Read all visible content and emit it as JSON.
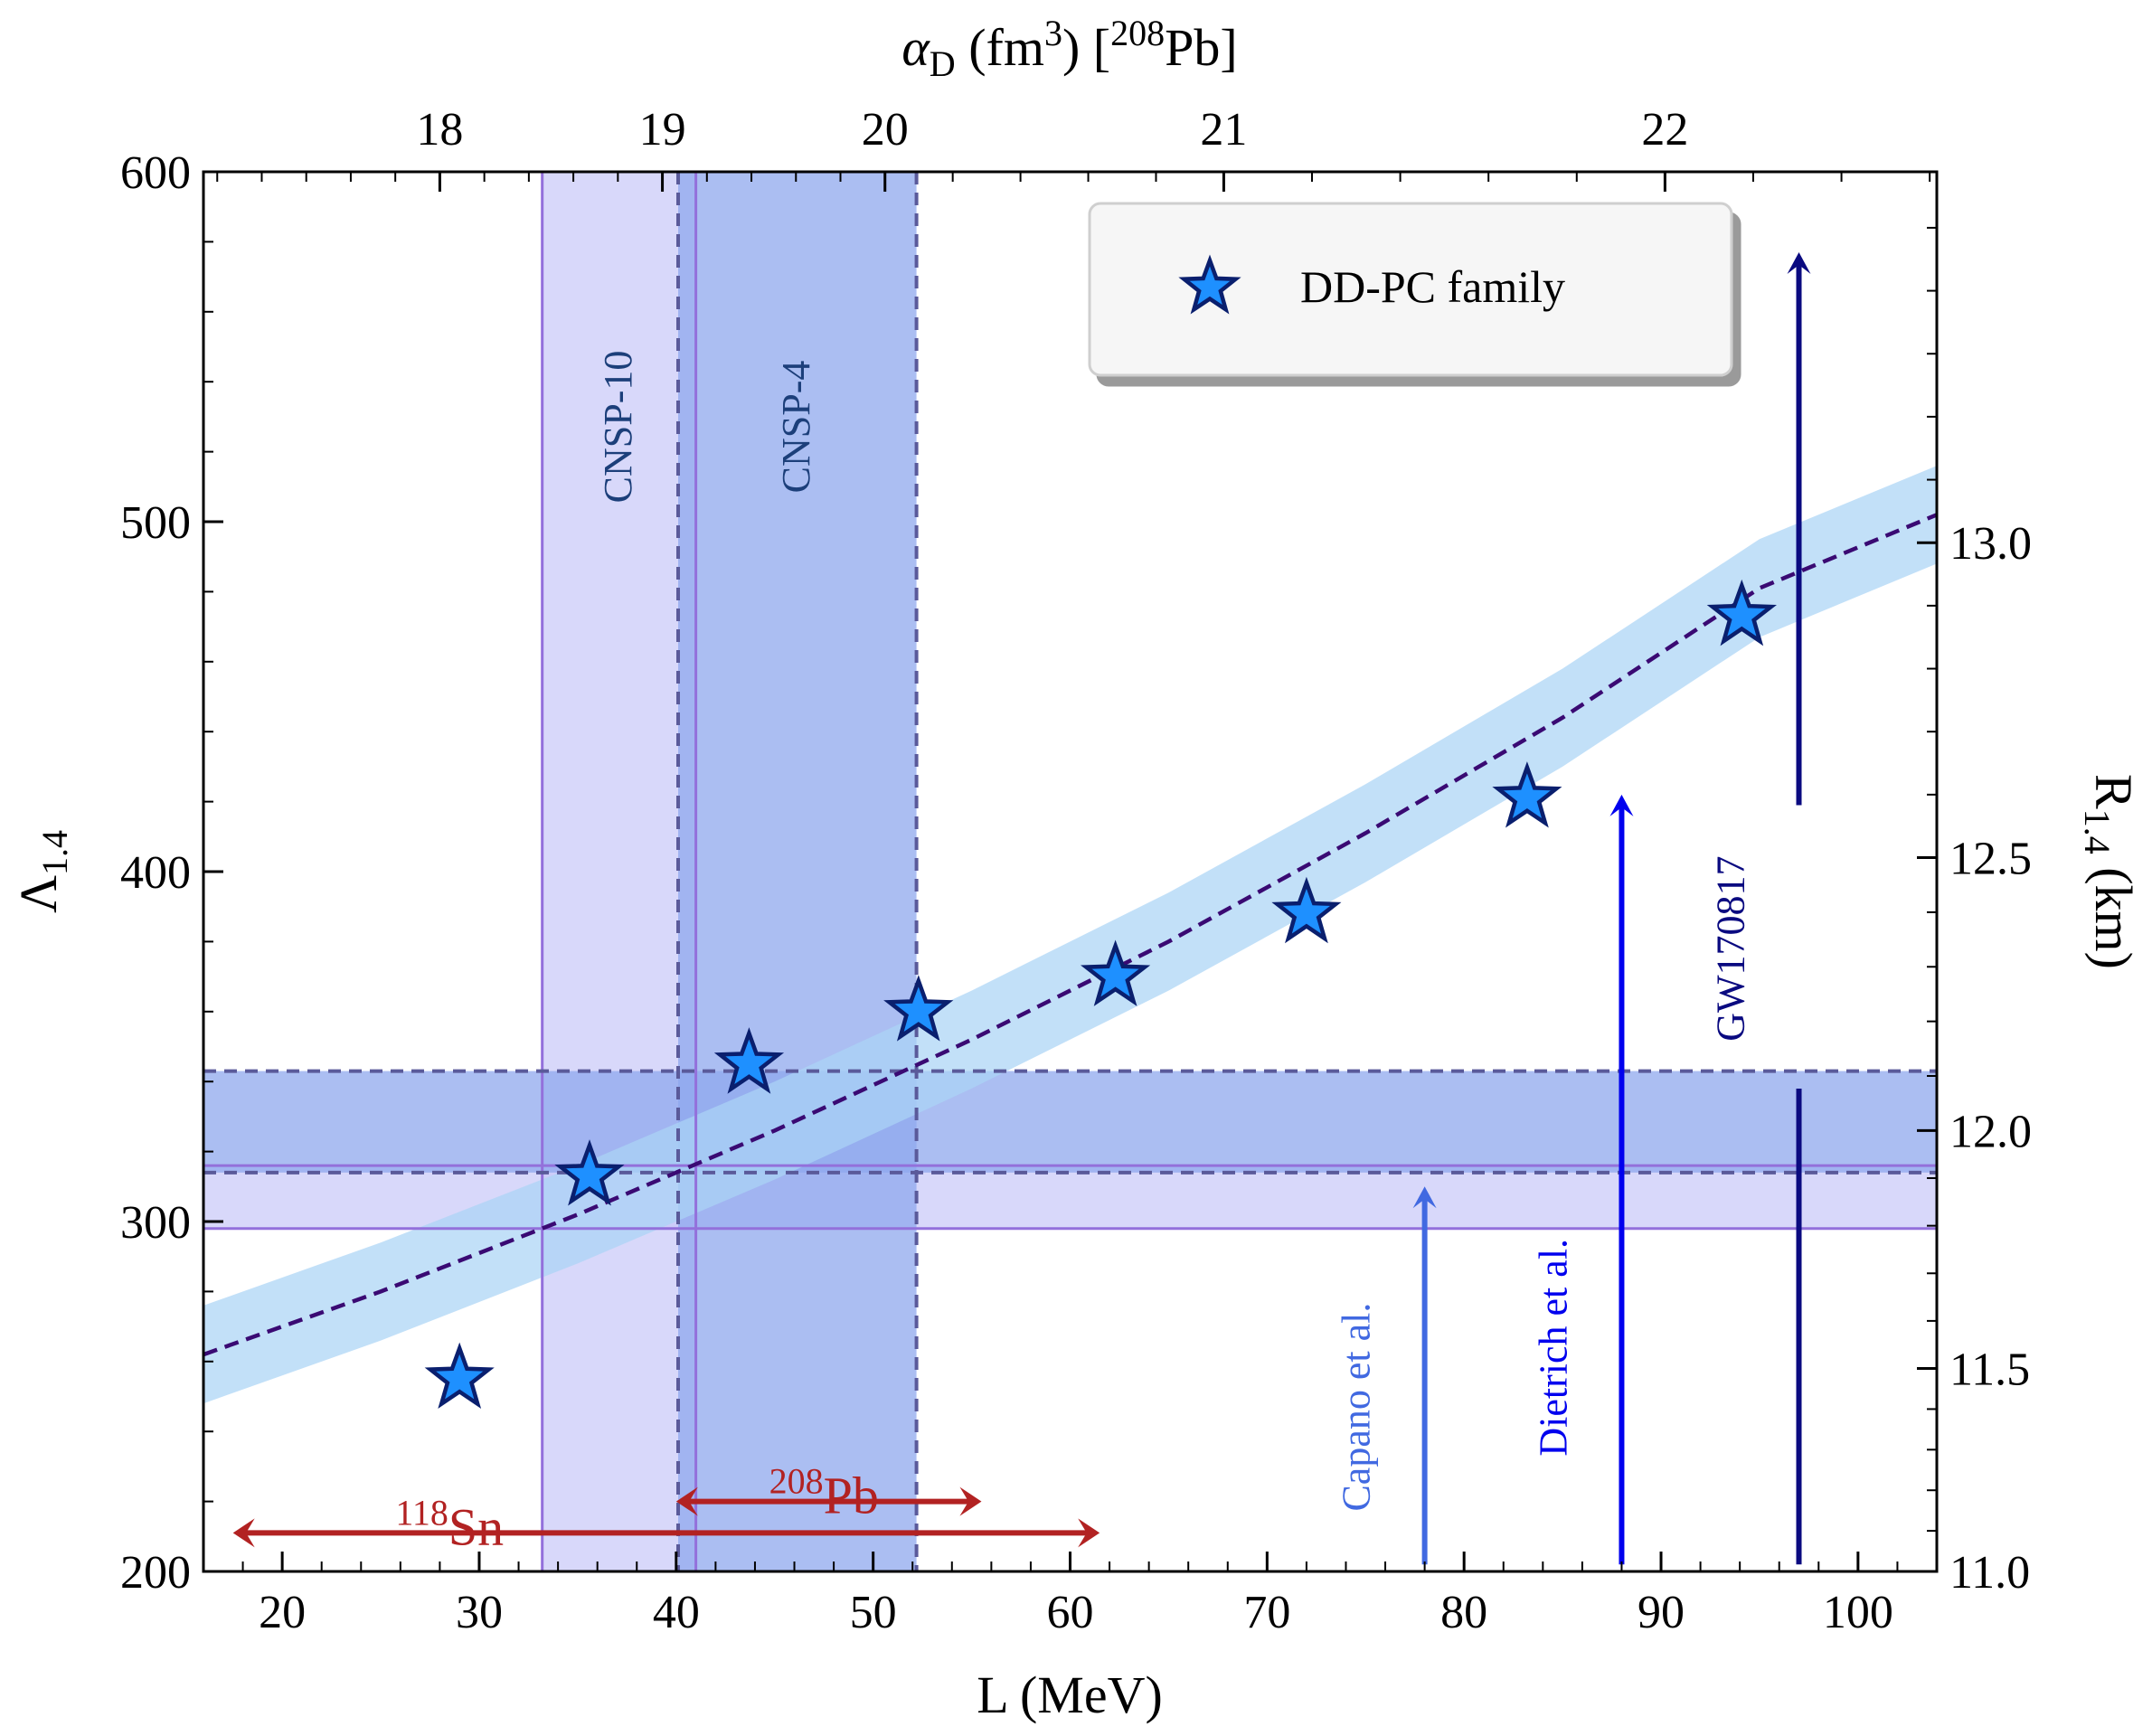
{
  "chart_data": {
    "type": "scatter",
    "xlabel": "L (MeV)",
    "ylabel": "Λ",
    "ylabel_sub": "1.4",
    "ylabel_right": "R",
    "ylabel_right_sub": "1.4",
    "ylabel_right_unit": " (km)",
    "xlabel_top_alpha": "α",
    "xlabel_top_sub": "D",
    "xlabel_top_mid": " (fm",
    "xlabel_top_sup": "3",
    "xlabel_top_mid2": ") [",
    "xlabel_top_pbsup": "208",
    "xlabel_top_end": "Pb]",
    "xlim": [
      16,
      104
    ],
    "ylim": [
      200,
      600
    ],
    "xticks": [
      20,
      30,
      40,
      50,
      60,
      70,
      80,
      90,
      100
    ],
    "yticks": [
      200,
      300,
      400,
      500,
      600
    ],
    "top_ticks": [
      {
        "label": "18",
        "L": 28.0
      },
      {
        "label": "19",
        "L": 39.3
      },
      {
        "label": "20",
        "L": 50.6
      },
      {
        "label": "21",
        "L": 67.8
      },
      {
        "label": "22",
        "L": 90.2
      }
    ],
    "right_ticks": [
      {
        "label": "11.0",
        "lambda": 200
      },
      {
        "label": "11.5",
        "lambda": 258
      },
      {
        "label": "12.0",
        "lambda": 326
      },
      {
        "label": "12.5",
        "lambda": 404
      },
      {
        "label": "13.0",
        "lambda": 494
      }
    ],
    "series": [
      {
        "name": "DD-PC family",
        "color": "#1e90ff",
        "edge_color": "#0a1f6e",
        "points": [
          {
            "x": 29.0,
            "y": 255
          },
          {
            "x": 35.6,
            "y": 313
          },
          {
            "x": 43.7,
            "y": 345
          },
          {
            "x": 52.3,
            "y": 360
          },
          {
            "x": 62.3,
            "y": 370
          },
          {
            "x": 72.0,
            "y": 388
          },
          {
            "x": 83.2,
            "y": 421
          },
          {
            "x": 94.1,
            "y": 473
          }
        ]
      }
    ],
    "fit": {
      "color": "#3a0a73",
      "band_color": "#aad4f5",
      "x": [
        16,
        25,
        35,
        45,
        55,
        65,
        75,
        85,
        95,
        104
      ],
      "y": [
        262,
        280,
        302,
        326,
        352,
        380,
        411,
        444,
        481,
        502
      ],
      "band_halfwidth": 14
    },
    "bands": [
      {
        "label": "CNSP-10",
        "x_min": 33.2,
        "x_max": 41.0,
        "y_min": 298,
        "y_max": 316,
        "color": "#c8c8f8",
        "edge": "#9370db",
        "style": "solid"
      },
      {
        "label": "CNSP-4",
        "x_min": 40.1,
        "x_max": 52.2,
        "y_min": 314,
        "y_max": 343,
        "color": "#8fa8ee",
        "edge": "#5a5a9a",
        "style": "dashed"
      }
    ],
    "arrows_horizontal": [
      {
        "label_sup": "118",
        "label": "Sn",
        "x_min": 17.5,
        "x_max": 61.5,
        "y": 211,
        "label_x": 28.5,
        "label_y": 218,
        "color": "#b22222"
      },
      {
        "label_sup": "208",
        "label": "Pb",
        "x_min": 40.0,
        "x_max": 55.5,
        "y": 220,
        "label_x": 47.5,
        "label_y": 227,
        "color": "#b22222"
      }
    ],
    "arrows_vertical": [
      {
        "label": "Capano et al.",
        "x": 78.0,
        "y_min": 202,
        "y_max": 310,
        "color": "#4169e1",
        "label_x": 75.2,
        "label_y": 247
      },
      {
        "label": "Dietrich et al.",
        "x": 88.0,
        "y_min": 202,
        "y_max": 422,
        "color": "#0000ee",
        "label_x": 85.2,
        "label_y": 264
      },
      {
        "label": "GW170817",
        "x": 97.0,
        "y_min": 202,
        "y_max": 577,
        "color": "#0a0a80",
        "gap": [
          338,
          419
        ],
        "label_x": 94.2,
        "label_y": 378
      }
    ],
    "legend": {
      "position": "top-right",
      "label": "DD-PC family"
    },
    "grid": false
  }
}
